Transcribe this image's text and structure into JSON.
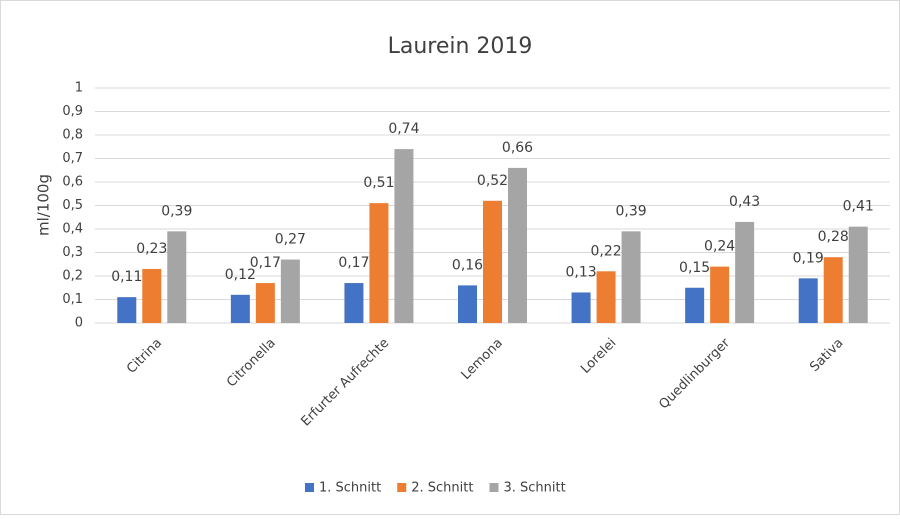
{
  "chart_data": {
    "type": "bar",
    "title": "Laurein 2019",
    "y_label": "ml/100g",
    "categories": [
      "Citrina",
      "Citronella",
      "Erfurter Aufrechte",
      "Lemona",
      "Lorelei",
      "Quedlinburger",
      "Sativa"
    ],
    "series": [
      {
        "name": "1. Schnitt",
        "color": "#4472c4",
        "values": [
          0.11,
          0.12,
          0.17,
          0.16,
          0.13,
          0.15,
          0.19
        ],
        "value_labels": [
          "0,11",
          "0,12",
          "0,17",
          "0,16",
          "0,13",
          "0,15",
          "0,19"
        ]
      },
      {
        "name": "2. Schnitt",
        "color": "#ed7d31",
        "values": [
          0.23,
          0.17,
          0.51,
          0.52,
          0.22,
          0.24,
          0.28
        ],
        "value_labels": [
          "0,23",
          "0,17",
          "0,51",
          "0,52",
          "0,22",
          "0,24",
          "0,28"
        ]
      },
      {
        "name": "3. Schnitt",
        "color": "#a5a5a5",
        "values": [
          0.39,
          0.27,
          0.74,
          0.66,
          0.39,
          0.43,
          0.41
        ],
        "value_labels": [
          "0,39",
          "0,27",
          "0,74",
          "0,66",
          "0,39",
          "0,43",
          "0,41"
        ]
      }
    ],
    "ylim": [
      0,
      1
    ],
    "yticks": [
      0,
      {
        "value": 0.1,
        "label": "0,1"
      },
      {
        "value": 0.2,
        "label": "0,2"
      },
      {
        "value": 0.3,
        "label": "0,3"
      },
      {
        "value": 0.4,
        "label": "0,4"
      },
      {
        "value": 0.5,
        "label": "0,5"
      },
      {
        "value": 0.6,
        "label": "0,6"
      },
      {
        "value": 0.7,
        "label": "0,7"
      },
      {
        "value": 0.8,
        "label": "0,8"
      },
      {
        "value": 0.9,
        "label": "0,9"
      },
      1
    ],
    "grid": true,
    "legend": "bottom"
  }
}
